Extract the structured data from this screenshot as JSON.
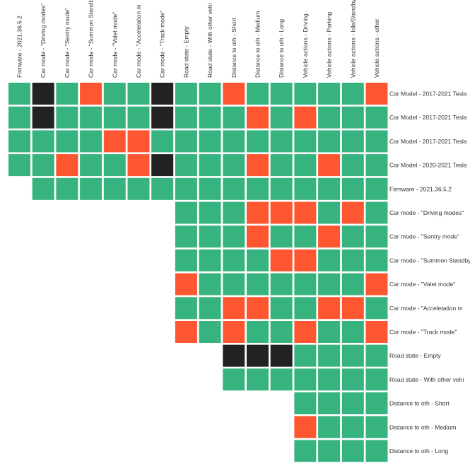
{
  "chart_data": {
    "type": "heatmap",
    "title": "",
    "colors": {
      "ok": "#36b37e",
      "conflict": "#fd5631",
      "blocked": "#222222"
    },
    "columns": [
      "Firmware - 2021.36.5.2",
      "Car mode - \"Driving modes\"",
      "Car mode - \"Sentry mode\"",
      "Car mode - \"Summon Standb",
      "Car mode - \"Valet mode\"",
      "Car mode - \"Acceletation m",
      "Car mode - \"Track mode\"",
      "Road state - Empty",
      "Road state - With other vehi",
      "Distance to oth - Short",
      "Distance to oth - Medium",
      "Distance to oth - Long",
      "Vehicle actions - Driving",
      "Vehicle actions - Parking",
      "Vehicle actions - Idle/Standby",
      "Vehicle actions - other"
    ],
    "rows": [
      {
        "label": "Car Model - 2017-2021 Tesla",
        "start": 0,
        "values": [
          "ok",
          "blocked",
          "ok",
          "conflict",
          "ok",
          "ok",
          "blocked",
          "ok",
          "ok",
          "conflict",
          "ok",
          "ok",
          "ok",
          "ok",
          "ok",
          "conflict"
        ]
      },
      {
        "label": "Car Model - 2017-2021 Tesla",
        "start": 0,
        "values": [
          "ok",
          "blocked",
          "ok",
          "ok",
          "ok",
          "ok",
          "blocked",
          "ok",
          "ok",
          "ok",
          "conflict",
          "ok",
          "conflict",
          "ok",
          "ok",
          "ok"
        ]
      },
      {
        "label": "Car Model - 2017-2021 Tesla",
        "start": 0,
        "values": [
          "ok",
          "ok",
          "ok",
          "ok",
          "conflict",
          "conflict",
          "ok",
          "ok",
          "ok",
          "ok",
          "ok",
          "ok",
          "ok",
          "ok",
          "ok",
          "ok"
        ]
      },
      {
        "label": "Car Model - 2020-2021 Tesla",
        "start": 0,
        "values": [
          "ok",
          "ok",
          "conflict",
          "ok",
          "ok",
          "conflict",
          "blocked",
          "ok",
          "ok",
          "ok",
          "conflict",
          "ok",
          "ok",
          "conflict",
          "ok",
          "ok"
        ]
      },
      {
        "label": "Firmware - 2021.36.5.2",
        "start": 1,
        "values": [
          "ok",
          "ok",
          "ok",
          "ok",
          "ok",
          "ok",
          "ok",
          "ok",
          "ok",
          "ok",
          "ok",
          "ok",
          "ok",
          "ok",
          "ok"
        ]
      },
      {
        "label": "Car mode - \"Driving modes\"",
        "start": 7,
        "values": [
          "ok",
          "ok",
          "ok",
          "conflict",
          "conflict",
          "conflict",
          "ok",
          "conflict",
          "ok"
        ]
      },
      {
        "label": "Car mode - \"Sentry mode\"",
        "start": 7,
        "values": [
          "ok",
          "ok",
          "ok",
          "conflict",
          "ok",
          "ok",
          "conflict",
          "ok",
          "ok"
        ]
      },
      {
        "label": "Car mode - \"Summon Standby",
        "start": 7,
        "values": [
          "ok",
          "ok",
          "ok",
          "ok",
          "conflict",
          "conflict",
          "ok",
          "ok",
          "ok"
        ]
      },
      {
        "label": "Car mode - \"Valet mode\"",
        "start": 7,
        "values": [
          "conflict",
          "ok",
          "ok",
          "ok",
          "ok",
          "ok",
          "ok",
          "ok",
          "conflict"
        ]
      },
      {
        "label": "Car mode - \"Acceletation m",
        "start": 7,
        "values": [
          "ok",
          "ok",
          "conflict",
          "conflict",
          "ok",
          "ok",
          "conflict",
          "conflict",
          "ok"
        ]
      },
      {
        "label": "Car mode - \"Track mode\"",
        "start": 7,
        "values": [
          "conflict",
          "ok",
          "conflict",
          "ok",
          "ok",
          "conflict",
          "ok",
          "ok",
          "conflict"
        ]
      },
      {
        "label": "Road state - Empty",
        "start": 9,
        "values": [
          "blocked",
          "blocked",
          "blocked",
          "ok",
          "ok",
          "ok",
          "ok"
        ]
      },
      {
        "label": "Road state - With other vehi",
        "start": 9,
        "values": [
          "ok",
          "ok",
          "ok",
          "ok",
          "ok",
          "ok",
          "ok"
        ]
      },
      {
        "label": "Distance to oth - Short",
        "start": 12,
        "values": [
          "ok",
          "ok",
          "ok",
          "ok"
        ]
      },
      {
        "label": "Distance to oth - Medium",
        "start": 12,
        "values": [
          "conflict",
          "ok",
          "ok",
          "ok"
        ]
      },
      {
        "label": "Distance to oth - Long",
        "start": 12,
        "values": [
          "ok",
          "ok",
          "ok",
          "ok"
        ]
      }
    ]
  }
}
